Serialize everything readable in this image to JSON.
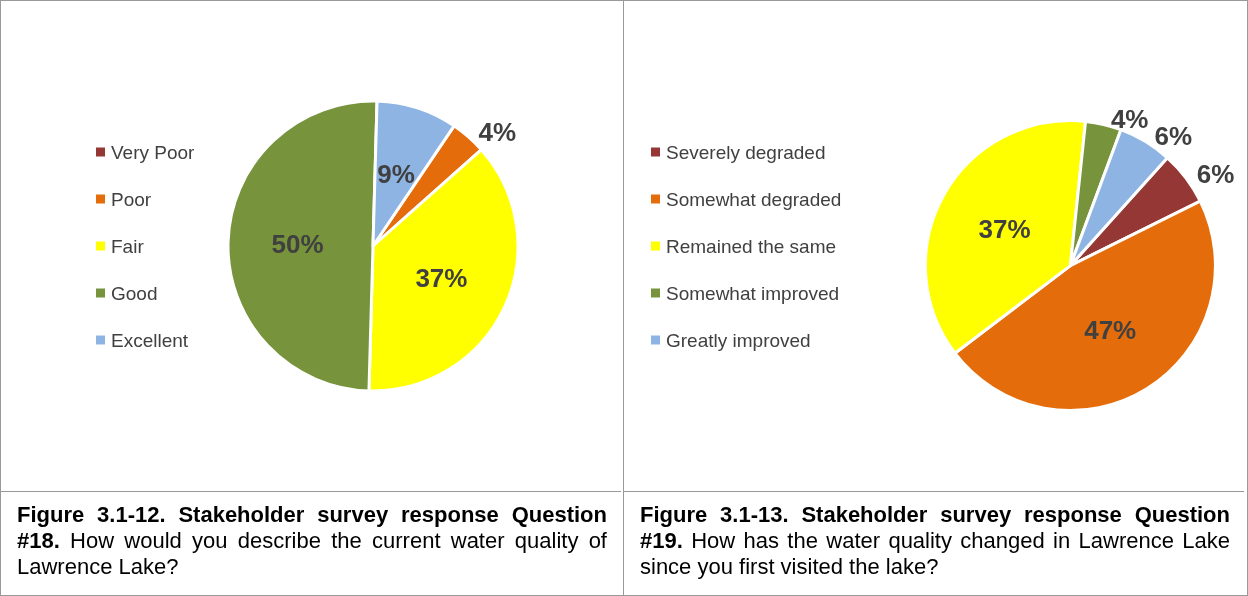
{
  "chart_data": [
    {
      "type": "pie",
      "title": "Figure 3.1-12.  Stakeholder survey response Question #18.",
      "subtitle": "How would you describe the current water quality of Lawrence Lake?",
      "categories": [
        "Very Poor",
        "Poor",
        "Fair",
        "Good",
        "Excellent"
      ],
      "values": [
        0,
        4,
        37,
        50,
        9
      ],
      "value_labels": [
        null,
        "4%",
        "37%",
        "50%",
        "9%"
      ],
      "colors": [
        "#953735",
        "#e46c0a",
        "#ffff00",
        "#77933c",
        "#8eb4e3"
      ],
      "legend": "left"
    },
    {
      "type": "pie",
      "title": "Figure 3.1-13.  Stakeholder survey response Question #19.",
      "subtitle": "How has the water quality changed in Lawrence Lake since you first visited the lake?",
      "categories": [
        "Severely degraded",
        "Somewhat degraded",
        "Remained the same",
        "Somewhat improved",
        "Greatly improved"
      ],
      "values": [
        6,
        47,
        37,
        4,
        6
      ],
      "value_labels": [
        "6%",
        "47%",
        "37%",
        "4%",
        "6%"
      ],
      "colors": [
        "#953735",
        "#e46c0a",
        "#ffff00",
        "#77933c",
        "#8eb4e3"
      ],
      "legend": "left"
    }
  ]
}
